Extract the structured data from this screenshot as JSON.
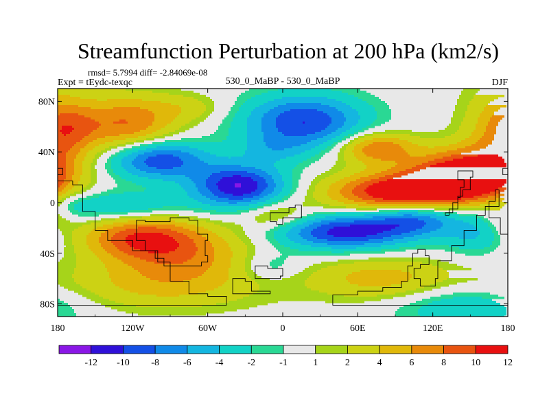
{
  "chart_data": {
    "type": "heatmap",
    "title": "Streamfunction Perturbation at 200 hPa (km2/s)",
    "stats_label": "rmsd= 5.7994 diff= -2.84069e-08",
    "experiment_label": "Expt = tEydc-texqc",
    "comparison_label": "530_0_MaBP - 530_0_MaBP",
    "season_label": "DJF",
    "x_range": [
      -180,
      180
    ],
    "y_range": [
      -90,
      90
    ],
    "x_ticks": [
      {
        "value": -180,
        "label": "180"
      },
      {
        "value": -120,
        "label": "120W"
      },
      {
        "value": -60,
        "label": "60W"
      },
      {
        "value": 0,
        "label": "0"
      },
      {
        "value": 60,
        "label": "60E"
      },
      {
        "value": 120,
        "label": "120E"
      },
      {
        "value": 180,
        "label": "180"
      }
    ],
    "y_ticks": [
      {
        "value": 80,
        "label": "80N"
      },
      {
        "value": 40,
        "label": "40N"
      },
      {
        "value": 0,
        "label": "0"
      },
      {
        "value": -40,
        "label": "40S"
      },
      {
        "value": -80,
        "label": "80S"
      }
    ],
    "levels": [
      -12,
      -10,
      -8,
      -6,
      -4,
      -2,
      -1,
      1,
      2,
      4,
      6,
      8,
      10,
      12
    ],
    "level_labels": [
      "-12",
      "-10",
      "-8",
      "-6",
      "-4",
      "-2",
      "-1",
      "1",
      "2",
      "4",
      "6",
      "8",
      "10",
      "12"
    ],
    "colors": [
      "#8a17e6",
      "#2f10d8",
      "#1450e6",
      "#108ae8",
      "#14b6e0",
      "#12d2c6",
      "#2ad894",
      "#e8e8e8",
      "#a6d41a",
      "#ccd214",
      "#e0b80a",
      "#e88a0a",
      "#e85410",
      "#e81010"
    ],
    "features": [
      {
        "lon": -125,
        "lat": 62,
        "amp": 8,
        "slon": 28,
        "slat": 16
      },
      {
        "lon": -172,
        "lat": 58,
        "amp": 4,
        "slon": 16,
        "slat": 14
      },
      {
        "lon": -75,
        "lat": 75,
        "amp": 2.5,
        "slon": 22,
        "slat": 8
      },
      {
        "lon": -100,
        "lat": 34,
        "amp": -10,
        "slon": 28,
        "slat": 11
      },
      {
        "lon": -35,
        "lat": 13,
        "amp": -12,
        "slon": 26,
        "slat": 12
      },
      {
        "lon": 17,
        "lat": 64,
        "amp": -10,
        "slon": 34,
        "slat": 15
      },
      {
        "lon": -8,
        "lat": 42,
        "amp": -3,
        "slon": 20,
        "slat": 8
      },
      {
        "lon": 75,
        "lat": 43,
        "amp": 8,
        "slon": 22,
        "slat": 9
      },
      {
        "lon": 95,
        "lat": 8,
        "amp": 13,
        "slon": 40,
        "slat": 11
      },
      {
        "lon": 145,
        "lat": 22,
        "amp": 13,
        "slon": 30,
        "slat": 14
      },
      {
        "lon": 175,
        "lat": 55,
        "amp": 5,
        "slon": 22,
        "slat": 30
      },
      {
        "lon": 50,
        "lat": -23,
        "amp": -11,
        "slon": 38,
        "slat": 10
      },
      {
        "lon": 105,
        "lat": -12,
        "amp": -8,
        "slon": 25,
        "slat": 9
      },
      {
        "lon": -135,
        "lat": -3,
        "amp": -5,
        "slon": 40,
        "slat": 8
      },
      {
        "lon": -115,
        "lat": -27,
        "amp": 8,
        "slon": 32,
        "slat": 12
      },
      {
        "lon": -80,
        "lat": -40,
        "amp": 6,
        "slon": 40,
        "slat": 16
      },
      {
        "lon": -100,
        "lat": -66,
        "amp": 4,
        "slon": 60,
        "slat": 14
      },
      {
        "lon": 80,
        "lat": -60,
        "amp": 5,
        "slon": 42,
        "slat": 12
      },
      {
        "lon": 145,
        "lat": -82,
        "amp": -4,
        "slon": 40,
        "slat": 12
      },
      {
        "lon": -10,
        "lat": -50,
        "amp": -3,
        "slon": 18,
        "slat": 8
      },
      {
        "lon": 155,
        "lat": -25,
        "amp": -4,
        "slon": 20,
        "slat": 12
      },
      {
        "lon": -178,
        "lat": 0,
        "amp": -3,
        "slon": 10,
        "slat": 8
      },
      {
        "lon": -5,
        "lat": -10,
        "amp": 4,
        "slon": 20,
        "slat": 8
      },
      {
        "lon": 178,
        "lat": -5,
        "amp": 4,
        "slon": 10,
        "slat": 12
      }
    ]
  }
}
